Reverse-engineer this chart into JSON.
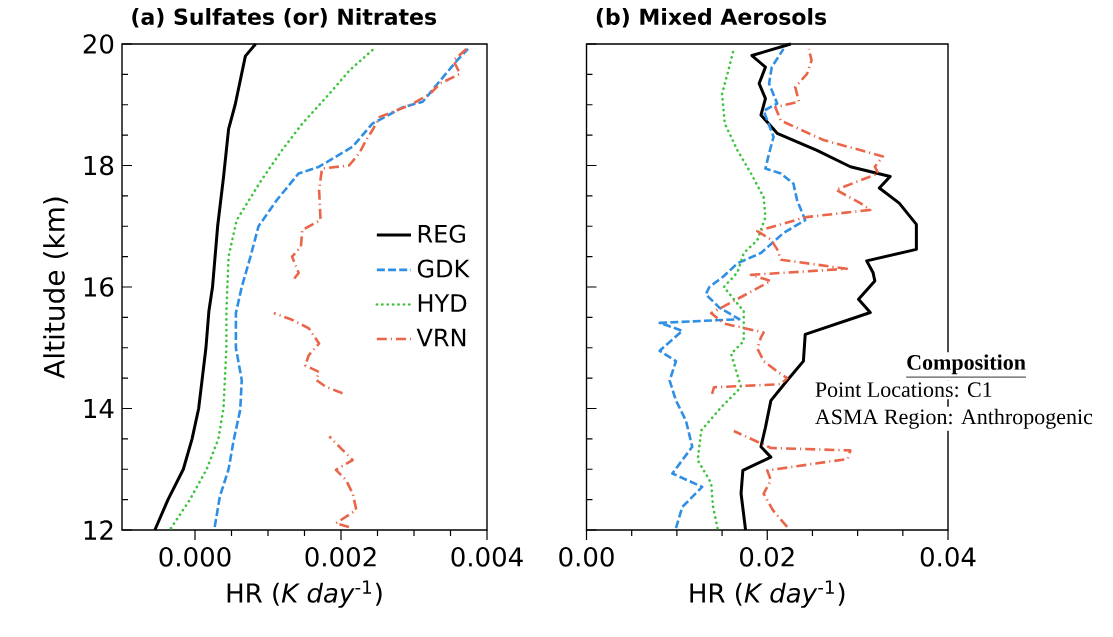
{
  "chart_data": [
    {
      "type": "line",
      "title": "(a) Sulfates (or) Nitrates",
      "xlabel": "HR (*K day*$^{-1}$)",
      "ylabel": "Altitude (km)",
      "xlim": [
        -0.001,
        0.004
      ],
      "ylim": [
        12,
        20
      ],
      "xticks": [
        {
          "value": 0,
          "label": "0.000"
        },
        {
          "value": 0.002,
          "label": "0.002"
        },
        {
          "value": 0.004,
          "label": "0.004"
        }
      ],
      "yticks": [
        12,
        14,
        16,
        18,
        20
      ],
      "legend": "center right",
      "series": [
        {
          "name": "REG",
          "color": "#000000",
          "line_style": "solid",
          "x": [
            -0.00055,
            -0.00037,
            -0.00016,
            -4e-05,
            5e-05,
            0.0001,
            0.00015,
            0.00019,
            0.00024,
            0.00031,
            0.00039,
            0.00046,
            0.00055,
            0.00069,
            0.00083
          ],
          "values": [
            12.0,
            12.5,
            13.0,
            13.5,
            14.0,
            14.5,
            15.0,
            15.6,
            16.0,
            17.0,
            17.8,
            18.6,
            19.0,
            19.8,
            20.0
          ]
        },
        {
          "name": "GDK",
          "color": "#2f8fe5",
          "line_style": "dashed",
          "x": [
            0.00027,
            0.00034,
            0.00046,
            0.00053,
            0.00062,
            0.00064,
            0.00056,
            0.00056,
            0.00064,
            0.00076,
            0.00087,
            0.00112,
            0.00142,
            0.0017,
            0.00216,
            0.00243,
            0.00285,
            0.00312,
            0.00336,
            0.00359,
            0.00374
          ],
          "values": [
            12.05,
            12.55,
            13.0,
            13.48,
            13.98,
            14.47,
            15.0,
            15.57,
            16.0,
            16.5,
            17.0,
            17.43,
            17.87,
            17.98,
            18.31,
            18.69,
            18.96,
            19.05,
            19.4,
            19.73,
            19.92
          ]
        },
        {
          "name": "HYD",
          "color": "#3cc43c",
          "line_style": "dotted",
          "x": [
            -0.00033,
            -7e-05,
            0.00016,
            0.00032,
            0.00039,
            0.00041,
            0.00043,
            0.00043,
            0.00046,
            0.00057,
            0.00074,
            0.00091,
            0.00119,
            0.00147,
            0.00184,
            0.00212,
            0.00243
          ],
          "values": [
            12.03,
            12.5,
            13.0,
            13.5,
            14.0,
            14.5,
            15.0,
            15.6,
            16.5,
            17.1,
            17.43,
            17.76,
            18.25,
            18.69,
            19.18,
            19.57,
            19.9
          ]
        },
        {
          "name": "VRN",
          "color": "#e9664a",
          "line_style": "dashdot",
          "x": [
            0.00211,
            0.00193,
            0.00221,
            0.00216,
            0.00207,
            0.00193,
            0.00216,
            0.00202,
            0.00184,
            null,
            0.00202,
            0.00179,
            0.00166,
            0.0017,
            0.00151,
            0.00156,
            0.0017,
            0.00156,
            0.00133,
            0.00108,
            null,
            0.00136,
            0.00142,
            0.00133,
            0.00145,
            0.00147,
            0.00172,
            0.0017,
            0.00174,
            0.00211,
            0.00225,
            0.00234,
            0.00243,
            0.00253,
            0.00294,
            0.00322,
            0.00336,
            0.00363,
            0.00354,
            0.00372
          ],
          "values": [
            12.05,
            12.11,
            12.33,
            12.6,
            12.82,
            12.99,
            13.15,
            13.32,
            13.54,
            null,
            14.25,
            14.36,
            14.47,
            14.6,
            14.71,
            14.88,
            15.07,
            15.32,
            15.46,
            15.57,
            null,
            16.14,
            16.23,
            16.5,
            16.66,
            16.94,
            17.1,
            17.6,
            17.95,
            18.0,
            18.2,
            18.41,
            18.58,
            18.8,
            18.99,
            19.18,
            19.35,
            19.51,
            19.73,
            19.92
          ]
        }
      ]
    },
    {
      "type": "line",
      "title": "(b) Mixed Aerosols",
      "xlabel": "HR (*K day*$^{-1}$)",
      "xlim": [
        0,
        0.04
      ],
      "ylim": [
        12,
        20
      ],
      "xticks": [
        {
          "value": 0,
          "label": "0.00"
        },
        {
          "value": 0.02,
          "label": "0.02"
        },
        {
          "value": 0.04,
          "label": "0.04"
        }
      ],
      "yticks": [
        12,
        14,
        16,
        18,
        20
      ],
      "tick_labels": "x",
      "annotations": [
        "Composition",
        "Point Locations: C1",
        "ASMA Region: Anthropogenic"
      ],
      "series": [
        {
          "color": "#000000",
          "line_style": "solid",
          "x": [
            0.0176,
            0.0171,
            0.0173,
            0.0204,
            0.0193,
            0.0198,
            0.0204,
            0.0222,
            0.024,
            0.0242,
            0.0314,
            0.0301,
            0.0319,
            0.0317,
            0.031,
            0.0365,
            0.0365,
            0.0346,
            0.0324,
            0.0336,
            0.0292,
            0.0255,
            0.0211,
            0.0193,
            0.0198,
            0.0191,
            0.0198,
            0.0183,
            0.0226
          ],
          "values": [
            12.0,
            12.6,
            12.98,
            13.2,
            13.37,
            13.69,
            14.13,
            14.46,
            14.78,
            15.22,
            15.58,
            15.8,
            16.1,
            16.24,
            16.43,
            16.62,
            17.03,
            17.38,
            17.63,
            17.82,
            17.98,
            18.25,
            18.53,
            18.83,
            19.1,
            19.35,
            19.62,
            19.81,
            20.0
          ]
        },
        {
          "color": "#2f8fe5",
          "line_style": "dashed",
          "x": [
            0.0099,
            0.0106,
            0.0128,
            0.0095,
            0.0117,
            0.011,
            0.0099,
            0.0092,
            0.0099,
            0.0081,
            0.0106,
            0.0081,
            0.0169,
            0.0147,
            0.0132,
            0.0136,
            0.0152,
            0.0167,
            0.0193,
            0.0218,
            0.0242,
            0.0233,
            0.0229,
            0.0215,
            0.0198,
            0.0202,
            0.0207,
            0.0196,
            0.0211,
            0.0202,
            0.0205,
            0.0218
          ],
          "values": [
            12.03,
            12.38,
            12.71,
            12.93,
            13.37,
            13.8,
            14.13,
            14.46,
            14.78,
            14.95,
            15.28,
            15.41,
            15.47,
            15.66,
            15.88,
            16.0,
            16.18,
            16.39,
            16.56,
            16.89,
            17.1,
            17.43,
            17.7,
            17.87,
            17.95,
            18.2,
            18.47,
            18.9,
            19.02,
            19.35,
            19.62,
            19.92
          ]
        },
        {
          "color": "#3cc43c",
          "line_style": "dotted",
          "x": [
            0.0145,
            0.014,
            0.0138,
            0.0123,
            0.0127,
            0.0149,
            0.0171,
            0.016,
            0.0174,
            0.0174,
            0.0152,
            0.0167,
            0.0174,
            0.0189,
            0.0198,
            0.0196,
            0.0182,
            0.0167,
            0.0153,
            0.015,
            0.0156,
            0.0163
          ],
          "values": [
            12.03,
            12.38,
            12.77,
            13.15,
            13.64,
            14.02,
            14.35,
            14.9,
            15.11,
            15.6,
            16.0,
            16.24,
            16.56,
            16.77,
            17.15,
            17.48,
            17.87,
            18.25,
            18.69,
            19.18,
            19.51,
            19.92
          ]
        },
        {
          "color": "#e9664a",
          "line_style": "dashdot",
          "x": [
            0.0222,
            0.0206,
            0.0196,
            0.0204,
            0.02,
            0.0289,
            0.0292,
            0.0204,
            0.0163,
            null,
            0.0139,
            0.0141,
            0.0215,
            0.0222,
            0.0211,
            0.0196,
            0.0189,
            0.0193,
            0.0196,
            0.0152,
            0.0138,
            0.0204,
            0.0193,
            0.0182,
            0.0288,
            0.0215,
            0.0211,
            0.0204,
            0.0189,
            0.0243,
            0.0314,
            0.0303,
            0.0276,
            0.0323,
            0.0319,
            0.0328,
            0.0262,
            0.0215,
            0.0209,
            0.0235,
            0.0231,
            0.0244,
            0.0249,
            0.0246
          ],
          "values": [
            12.05,
            12.33,
            12.6,
            12.82,
            12.98,
            13.17,
            13.31,
            13.35,
            13.63,
            null,
            14.24,
            14.35,
            14.4,
            14.5,
            14.61,
            14.78,
            14.99,
            15.17,
            15.25,
            15.4,
            15.57,
            16.1,
            16.15,
            16.2,
            16.3,
            16.45,
            16.62,
            16.78,
            16.92,
            17.15,
            17.27,
            17.38,
            17.6,
            17.87,
            17.98,
            18.15,
            18.42,
            18.74,
            18.96,
            19.05,
            19.29,
            19.51,
            19.73,
            19.92
          ]
        }
      ]
    }
  ]
}
